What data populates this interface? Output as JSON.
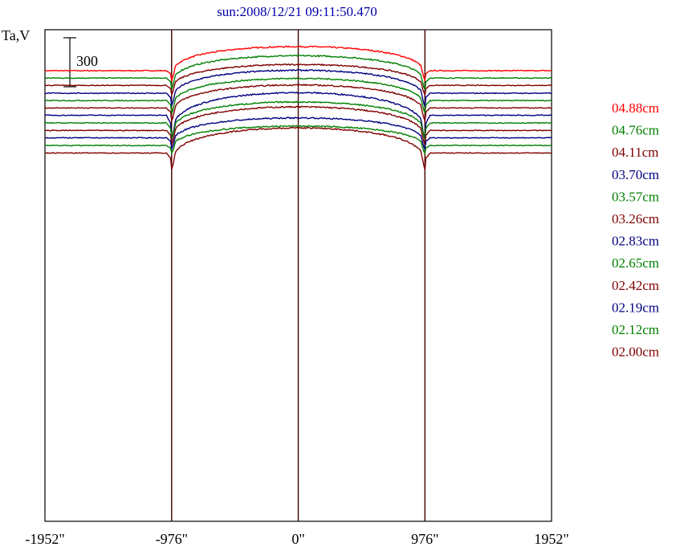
{
  "chart_data": {
    "type": "line",
    "title": "sun:2008/12/21 09:11:50.470",
    "ylabel": "Ta,V",
    "xlabel": "",
    "scale_bar_label": "300",
    "scale_bar_value": 300,
    "x_ticks": [
      {
        "value": -1952,
        "label": "-1952\""
      },
      {
        "value": -976,
        "label": "-976\""
      },
      {
        "value": 0,
        "label": "0\""
      },
      {
        "value": 976,
        "label": "976\""
      },
      {
        "value": 1952,
        "label": "1952\""
      }
    ],
    "xlim": [
      -1952,
      1952
    ],
    "vertical_lines": [
      -976,
      0,
      976
    ],
    "grid": false,
    "legend_position": "right",
    "series": [
      {
        "name": "04.88cm",
        "color": "#ff0000",
        "offset": 0,
        "disk": 310,
        "limb_dip": 60,
        "edge_drop": 20
      },
      {
        "name": "04.76cm",
        "color": "#008000",
        "offset": -45,
        "disk": 290,
        "limb_dip": 70,
        "edge_drop": 25
      },
      {
        "name": "04.11cm",
        "color": "#800000",
        "offset": -90,
        "disk": 270,
        "limb_dip": 60,
        "edge_drop": 20
      },
      {
        "name": "03.70cm",
        "color": "#000080",
        "offset": -138,
        "disk": 300,
        "limb_dip": 80,
        "edge_drop": 30
      },
      {
        "name": "03.57cm",
        "color": "#008000",
        "offset": -183,
        "disk": 290,
        "limb_dip": 80,
        "edge_drop": 30
      },
      {
        "name": "03.26cm",
        "color": "#800000",
        "offset": -228,
        "disk": 300,
        "limb_dip": 80,
        "edge_drop": 30
      },
      {
        "name": "02.83cm",
        "color": "#000080",
        "offset": -273,
        "disk": 310,
        "limb_dip": 150,
        "edge_drop": 50
      },
      {
        "name": "02.65cm",
        "color": "#008000",
        "offset": -320,
        "disk": 280,
        "limb_dip": 100,
        "edge_drop": 40
      },
      {
        "name": "02.42cm",
        "color": "#800000",
        "offset": -366,
        "disk": 310,
        "limb_dip": 90,
        "edge_drop": 30
      },
      {
        "name": "02.19cm",
        "color": "#000080",
        "offset": -411,
        "disk": 260,
        "limb_dip": 70,
        "edge_drop": 30
      },
      {
        "name": "02.12cm",
        "color": "#008000",
        "offset": -458,
        "disk": 250,
        "limb_dip": 50,
        "edge_drop": 10
      },
      {
        "name": "02.00cm",
        "color": "#800000",
        "offset": -504,
        "disk": 330,
        "limb_dip": 100,
        "edge_drop": 35
      }
    ]
  }
}
